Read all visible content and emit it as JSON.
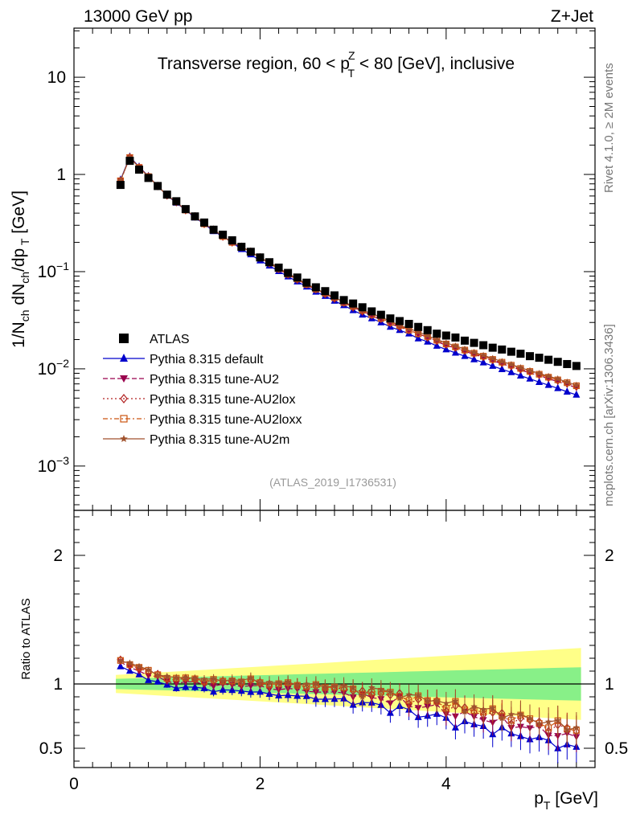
{
  "header": {
    "energy_label": "13000 GeV pp",
    "process_label": "Z+Jet"
  },
  "side_labels": {
    "rivet": "Rivet 4.1.0, ≥ 2M events",
    "mcplots": "mcplots.cern.ch [arXiv:1306.3436]"
  },
  "analysis_tag": "(ATLAS_2019_I1736531)",
  "chart_data": [
    {
      "type": "line",
      "panel": "main",
      "title": "Transverse region, 60 < p_T^Z < 80 [GeV], inclusive",
      "title_parts": [
        "Transverse region, 60 < p",
        "Z",
        "T",
        " < 80 [GeV], inclusive"
      ],
      "xlabel": "p_T [GeV]",
      "ylabel": "1/N_ch dN_ch/dp_T [GeV]",
      "yscale": "log",
      "xlim": [
        0,
        5.6
      ],
      "ylim": [
        0.00035,
        32
      ],
      "y_ticks": [
        {
          "value": 10,
          "base": "10",
          "exp": ""
        },
        {
          "value": 1,
          "base": "1",
          "exp": ""
        },
        {
          "value": 0.1,
          "base": "10",
          "exp": "−1"
        },
        {
          "value": 0.01,
          "base": "10",
          "exp": "−2"
        },
        {
          "value": 0.001,
          "base": "10",
          "exp": "−3"
        }
      ],
      "x": [
        0.5,
        0.6,
        0.7,
        0.8,
        0.9,
        1.0,
        1.1,
        1.2,
        1.3,
        1.4,
        1.5,
        1.6,
        1.7,
        1.8,
        1.9,
        2.0,
        2.1,
        2.2,
        2.3,
        2.4,
        2.5,
        2.6,
        2.7,
        2.8,
        2.9,
        3.0,
        3.1,
        3.2,
        3.3,
        3.4,
        3.5,
        3.6,
        3.7,
        3.8,
        3.9,
        4.0,
        4.1,
        4.2,
        4.3,
        4.4,
        4.5,
        4.6,
        4.7,
        4.8,
        4.9,
        5.0,
        5.1,
        5.2,
        5.3,
        5.4
      ],
      "data_series": {
        "name": "ATLAS",
        "values": [
          0.78,
          1.38,
          1.12,
          0.92,
          0.76,
          0.62,
          0.53,
          0.44,
          0.37,
          0.32,
          0.27,
          0.24,
          0.21,
          0.18,
          0.16,
          0.14,
          0.125,
          0.11,
          0.097,
          0.087,
          0.077,
          0.069,
          0.063,
          0.057,
          0.051,
          0.047,
          0.043,
          0.039,
          0.036,
          0.033,
          0.031,
          0.029,
          0.027,
          0.025,
          0.023,
          0.022,
          0.021,
          0.0195,
          0.0185,
          0.0175,
          0.0165,
          0.0158,
          0.015,
          0.0143,
          0.0135,
          0.013,
          0.0124,
          0.0118,
          0.0112,
          0.0107
        ]
      },
      "series": [
        {
          "name": "Pythia 8.315 default",
          "color": "#0000cc",
          "marker": "triangle-up",
          "dash": "",
          "values": [
            0.88,
            1.52,
            1.2,
            0.96,
            0.76,
            0.61,
            0.51,
            0.43,
            0.36,
            0.31,
            0.26,
            0.23,
            0.2,
            0.17,
            0.15,
            0.13,
            0.115,
            0.101,
            0.089,
            0.079,
            0.07,
            0.062,
            0.056,
            0.05,
            0.045,
            0.04,
            0.036,
            0.033,
            0.03,
            0.027,
            0.025,
            0.023,
            0.0205,
            0.019,
            0.0172,
            0.0158,
            0.0146,
            0.0135,
            0.0125,
            0.0116,
            0.0107,
            0.0099,
            0.0092,
            0.0085,
            0.0079,
            0.0073,
            0.0068,
            0.0063,
            0.0058,
            0.0054
          ]
        },
        {
          "name": "Pythia 8.315 tune-AU2",
          "color": "#99004d",
          "marker": "triangle-down",
          "dash": "6,3",
          "values": [
            0.86,
            1.5,
            1.19,
            0.95,
            0.76,
            0.61,
            0.52,
            0.43,
            0.37,
            0.31,
            0.27,
            0.23,
            0.2,
            0.18,
            0.16,
            0.14,
            0.122,
            0.106,
            0.093,
            0.083,
            0.073,
            0.065,
            0.059,
            0.053,
            0.048,
            0.043,
            0.039,
            0.035,
            0.032,
            0.029,
            0.027,
            0.025,
            0.023,
            0.021,
            0.019,
            0.0175,
            0.0163,
            0.0152,
            0.0141,
            0.0131,
            0.0121,
            0.0113,
            0.0105,
            0.0097,
            0.0091,
            0.0085,
            0.0079,
            0.0074,
            0.0069,
            0.0064
          ]
        },
        {
          "name": "Pythia 8.315 tune-AU2lox",
          "color": "#b22222",
          "marker": "diamond-open",
          "dash": "2,3",
          "values": [
            0.86,
            1.5,
            1.18,
            0.95,
            0.76,
            0.61,
            0.52,
            0.43,
            0.37,
            0.31,
            0.27,
            0.23,
            0.2,
            0.18,
            0.16,
            0.14,
            0.122,
            0.107,
            0.094,
            0.083,
            0.074,
            0.066,
            0.059,
            0.053,
            0.048,
            0.043,
            0.039,
            0.036,
            0.033,
            0.03,
            0.027,
            0.025,
            0.023,
            0.021,
            0.0195,
            0.0178,
            0.0166,
            0.0154,
            0.0143,
            0.0133,
            0.0124,
            0.0115,
            0.0107,
            0.0099,
            0.0093,
            0.0087,
            0.0081,
            0.0076,
            0.0071,
            0.0066
          ]
        },
        {
          "name": "Pythia 8.315 tune-AU2loxx",
          "color": "#cc5511",
          "marker": "square-open",
          "dash": "6,3,2,3",
          "values": [
            0.86,
            1.49,
            1.18,
            0.95,
            0.76,
            0.61,
            0.52,
            0.43,
            0.37,
            0.31,
            0.27,
            0.23,
            0.2,
            0.18,
            0.16,
            0.14,
            0.123,
            0.107,
            0.094,
            0.084,
            0.074,
            0.066,
            0.06,
            0.054,
            0.048,
            0.044,
            0.04,
            0.036,
            0.033,
            0.03,
            0.028,
            0.025,
            0.023,
            0.0215,
            0.0197,
            0.018,
            0.0168,
            0.0156,
            0.0145,
            0.0135,
            0.0125,
            0.0117,
            0.0109,
            0.0101,
            0.0094,
            0.0088,
            0.0082,
            0.0077,
            0.0072,
            0.0067
          ]
        },
        {
          "name": "Pythia 8.315 tune-AU2m",
          "color": "#a0522d",
          "marker": "star",
          "dash": "",
          "values": [
            0.87,
            1.5,
            1.18,
            0.95,
            0.76,
            0.61,
            0.52,
            0.43,
            0.37,
            0.31,
            0.27,
            0.23,
            0.2,
            0.18,
            0.16,
            0.14,
            0.125,
            0.109,
            0.096,
            0.085,
            0.075,
            0.067,
            0.06,
            0.054,
            0.049,
            0.044,
            0.04,
            0.037,
            0.034,
            0.031,
            0.028,
            0.026,
            0.024,
            0.022,
            0.02,
            0.0185,
            0.0172,
            0.016,
            0.0148,
            0.0138,
            0.0128,
            0.0119,
            0.0111,
            0.0103,
            0.0096,
            0.009,
            0.0084,
            0.0079,
            0.0073,
            0.0068
          ]
        }
      ],
      "legend_position": "middle-left"
    },
    {
      "type": "line",
      "panel": "ratio",
      "xlabel": "p_T [GeV]",
      "ylabel": "Ratio to ATLAS",
      "xlim": [
        0,
        5.6
      ],
      "ylim": [
        0.35,
        2.35
      ],
      "x_ticks": [
        0,
        2,
        4
      ],
      "y_ticks": [
        0.5,
        1,
        2
      ],
      "band_x": [
        0.45,
        5.45
      ],
      "band_green_halfwidth": [
        0.04,
        0.13
      ],
      "band_yellow_halfwidth": [
        0.07,
        0.28
      ],
      "series_ratio": {
        "Pythia 8.315 default": [
          1.13,
          1.1,
          1.07,
          1.04,
          1.01,
          0.99,
          0.97,
          0.98,
          0.97,
          0.96,
          0.95,
          0.95,
          0.95,
          0.94,
          0.95,
          0.93,
          0.92,
          0.91,
          0.92,
          0.9,
          0.9,
          0.89,
          0.88,
          0.88,
          0.88,
          0.85,
          0.83,
          0.85,
          0.83,
          0.81,
          0.8,
          0.79,
          0.76,
          0.76,
          0.75,
          0.72,
          0.7,
          0.69,
          0.68,
          0.66,
          0.65,
          0.63,
          0.61,
          0.6,
          0.59,
          0.56,
          0.55,
          0.53,
          0.52,
          0.5
        ]
      },
      "ratio_offsets": {
        "Pythia 8.315 tune-AU2": 0.03,
        "Pythia 8.315 tune-AU2lox": 0.05,
        "Pythia 8.315 tune-AU2loxx": 0.055,
        "Pythia 8.315 tune-AU2m": 0.06
      }
    }
  ]
}
